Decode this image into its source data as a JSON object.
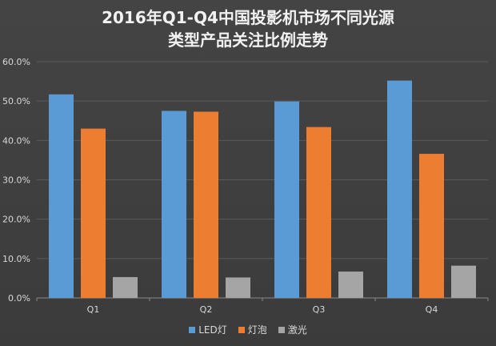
{
  "chart_data": {
    "type": "bar",
    "title": [
      "2016年Q1-Q4中国投影机市场不同光源",
      "类型产品关注比例走势"
    ],
    "categories": [
      "Q1",
      "Q2",
      "Q3",
      "Q4"
    ],
    "series": [
      {
        "name": "LED灯",
        "values": [
          51.7,
          47.5,
          49.9,
          55.2
        ],
        "color": "#5b9bd5"
      },
      {
        "name": "灯泡",
        "values": [
          43.0,
          47.3,
          43.4,
          36.6
        ],
        "color": "#ed7d31"
      },
      {
        "name": "激光",
        "values": [
          5.3,
          5.2,
          6.7,
          8.2
        ],
        "color": "#a5a5a5"
      }
    ],
    "yticks": [
      "0.0%",
      "10.0%",
      "20.0%",
      "30.0%",
      "40.0%",
      "50.0%",
      "60.0%"
    ],
    "ylim": [
      0,
      60
    ],
    "grid": true,
    "legend_position": "bottom"
  }
}
